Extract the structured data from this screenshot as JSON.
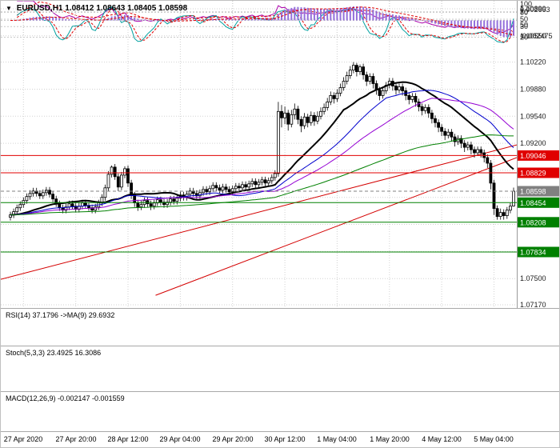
{
  "header": {
    "dropdown_icon": "▼",
    "title": "EURUSD,H1 1.08412 1.08643 1.08405 1.08598"
  },
  "colors": {
    "bull": "#FFFFFF",
    "bear": "#000000",
    "candle_outline": "#000000",
    "axis_border": "#9A9A9A"
  },
  "chart_data": {
    "type": "candlestick",
    "symbol": "EURUSD",
    "timeframe": "H1",
    "ohlc_display": {
      "open": "1.08412",
      "high": "1.08643",
      "low": "1.08405",
      "close": "1.08598"
    },
    "x_axis": {
      "labels": [
        "27 Apr 2020",
        "27 Apr 20:00",
        "28 Apr 12:00",
        "29 Apr 04:00",
        "29 Apr 20:00",
        "30 Apr 12:00",
        "1 May 04:00",
        "1 May 20:00",
        "4 May 12:00",
        "5 May 04:00"
      ],
      "label_candle_indices": [
        4,
        20,
        36,
        52,
        68,
        84,
        100,
        116,
        132,
        148
      ]
    },
    "y_axis": {
      "min": 1.0717,
      "max": 1.1089,
      "gridline_values": [
        1.1089,
        1.1055,
        1.1022,
        1.0988,
        1.0954,
        1.092,
        1.0886,
        1.0852,
        1.0818,
        1.0784,
        1.075,
        1.0717
      ],
      "tick_labels": [
        "1.10890",
        "1.10550",
        "1.10220",
        "1.09880",
        "1.09540",
        "1.09200",
        "",
        "",
        "",
        "",
        "1.07500",
        "1.07170"
      ]
    },
    "levels": [
      {
        "price": 1.09046,
        "label": "1.09046",
        "type": "resistance",
        "color": "#E00000",
        "dashed": false
      },
      {
        "price": 1.08829,
        "label": "1.08829",
        "type": "resistance",
        "color": "#E00000",
        "dashed": false
      },
      {
        "price": 1.08598,
        "label": "1.08598",
        "type": "current-price",
        "color": "#808080",
        "dashed": true
      },
      {
        "price": 1.08454,
        "label": "1.08454",
        "type": "support",
        "color": "#008000",
        "dashed": false
      },
      {
        "price": 1.08208,
        "label": "1.08208",
        "type": "support",
        "color": "#008000",
        "dashed": false
      },
      {
        "price": 1.07834,
        "label": "1.07834",
        "type": "support",
        "color": "#008000",
        "dashed": false
      }
    ],
    "trendlines": [
      {
        "x1f": 0.0,
        "p1": 1.0749,
        "x2f": 1.0,
        "p2": 1.0918,
        "color": "#D40000"
      },
      {
        "x1f": 0.3,
        "p1": 1.0729,
        "x2f": 1.0,
        "p2": 1.0902,
        "color": "#D40000"
      }
    ],
    "moving_averages": [
      {
        "name": "ma-fast-black",
        "period": 21,
        "color": "#000000",
        "width": 2
      },
      {
        "name": "ma-medium-blue",
        "period": 34,
        "color": "#0000CD",
        "width": 1
      },
      {
        "name": "ma-slow-violet",
        "period": 48,
        "color": "#9400D3",
        "width": 1
      },
      {
        "name": "ma-slowest-green",
        "period": 96,
        "color": "#008000",
        "width": 1
      }
    ],
    "indicators": {
      "rsi": {
        "label": "RSI(14) 37.1796 ->MA(9) 29.6932",
        "period": 14,
        "ma_period": 9,
        "levels": [
          70,
          50,
          30
        ],
        "color": "#AA00AA",
        "ma_color": "#E00000"
      },
      "stoch": {
        "label": "Stoch(5,3,3) 23.4925 16.3086",
        "k": 5,
        "slowing": 3,
        "d": 3,
        "levels": [
          100,
          80,
          50,
          20
        ],
        "dotted_levels": [
          80,
          20
        ],
        "color": "#00A0A0",
        "signal_color": "#E00000"
      },
      "macd": {
        "label": "MACD(12,26,9) -0.002147 -0.001559",
        "fast": 12,
        "slow": 26,
        "signal": 9,
        "axis_labels": [
          "0.002663",
          "-0.002475"
        ],
        "hist_color": "#9370DB",
        "signal_color": "#E00000"
      }
    },
    "candles": [
      [
        1.0827,
        1.0834,
        1.0823,
        1.083
      ],
      [
        1.083,
        1.0838,
        1.0826,
        1.0834
      ],
      [
        1.0834,
        1.0843,
        1.083,
        1.0839
      ],
      [
        1.0839,
        1.0847,
        1.0835,
        1.0843
      ],
      [
        1.0843,
        1.0852,
        1.0839,
        1.0848
      ],
      [
        1.0848,
        1.0857,
        1.0844,
        1.0853
      ],
      [
        1.0853,
        1.0861,
        1.0849,
        1.0857
      ],
      [
        1.0857,
        1.0864,
        1.0853,
        1.086
      ],
      [
        1.086,
        1.0864,
        1.0853,
        1.0857
      ],
      [
        1.0857,
        1.0861,
        1.085,
        1.0854
      ],
      [
        1.0854,
        1.0862,
        1.085,
        1.0858
      ],
      [
        1.0858,
        1.0865,
        1.0854,
        1.0861
      ],
      [
        1.0861,
        1.0865,
        1.0852,
        1.0856
      ],
      [
        1.0856,
        1.086,
        1.0846,
        1.085
      ],
      [
        1.085,
        1.0854,
        1.084,
        1.0844
      ],
      [
        1.0844,
        1.0848,
        1.0835,
        1.0839
      ],
      [
        1.0839,
        1.0843,
        1.0832,
        1.0836
      ],
      [
        1.0836,
        1.0844,
        1.0832,
        1.084
      ],
      [
        1.084,
        1.0848,
        1.0836,
        1.0844
      ],
      [
        1.0844,
        1.0848,
        1.0837,
        1.0841
      ],
      [
        1.0841,
        1.0845,
        1.0833,
        1.0837
      ],
      [
        1.0837,
        1.0845,
        1.0833,
        1.0841
      ],
      [
        1.0841,
        1.0849,
        1.0837,
        1.0845
      ],
      [
        1.0845,
        1.0849,
        1.0838,
        1.0842
      ],
      [
        1.0842,
        1.0846,
        1.0835,
        1.0839
      ],
      [
        1.0839,
        1.0843,
        1.0832,
        1.0836
      ],
      [
        1.0836,
        1.0844,
        1.0832,
        1.084
      ],
      [
        1.084,
        1.0849,
        1.0836,
        1.0845
      ],
      [
        1.0845,
        1.0856,
        1.0841,
        1.0852
      ],
      [
        1.0852,
        1.0868,
        1.0848,
        1.0864
      ],
      [
        1.0864,
        1.0885,
        1.086,
        1.0881
      ],
      [
        1.0881,
        1.0892,
        1.0877,
        1.089
      ],
      [
        1.089,
        1.0894,
        1.0874,
        1.0878
      ],
      [
        1.0878,
        1.0882,
        1.086,
        1.0865
      ],
      [
        1.0865,
        1.0884,
        1.0861,
        1.088
      ],
      [
        1.088,
        1.0891,
        1.0876,
        1.0888
      ],
      [
        1.0888,
        1.0892,
        1.0865,
        1.087
      ],
      [
        1.087,
        1.0874,
        1.085,
        1.0855
      ],
      [
        1.0855,
        1.0859,
        1.084,
        1.0845
      ],
      [
        1.0845,
        1.0849,
        1.0835,
        1.084
      ],
      [
        1.084,
        1.0848,
        1.0836,
        1.0843
      ],
      [
        1.0843,
        1.0852,
        1.0839,
        1.0848
      ],
      [
        1.0848,
        1.0852,
        1.084,
        1.0844
      ],
      [
        1.0844,
        1.0848,
        1.0836,
        1.0841
      ],
      [
        1.0841,
        1.0849,
        1.0837,
        1.0845
      ],
      [
        1.0845,
        1.0853,
        1.0841,
        1.0849
      ],
      [
        1.0849,
        1.0853,
        1.0842,
        1.0846
      ],
      [
        1.0846,
        1.085,
        1.0839,
        1.0843
      ],
      [
        1.0843,
        1.085,
        1.0839,
        1.0846
      ],
      [
        1.0846,
        1.0854,
        1.0842,
        1.085
      ],
      [
        1.085,
        1.0854,
        1.0843,
        1.0847
      ],
      [
        1.0847,
        1.0855,
        1.0843,
        1.0851
      ],
      [
        1.0851,
        1.0859,
        1.0847,
        1.0855
      ],
      [
        1.0855,
        1.0859,
        1.0848,
        1.0852
      ],
      [
        1.0852,
        1.086,
        1.0848,
        1.0856
      ],
      [
        1.0856,
        1.0864,
        1.0852,
        1.086
      ],
      [
        1.086,
        1.0864,
        1.0853,
        1.0857
      ],
      [
        1.0857,
        1.0861,
        1.085,
        1.0854
      ],
      [
        1.0854,
        1.0862,
        1.085,
        1.0858
      ],
      [
        1.0858,
        1.0866,
        1.0854,
        1.0862
      ],
      [
        1.0862,
        1.0866,
        1.0855,
        1.0859
      ],
      [
        1.0859,
        1.0867,
        1.0855,
        1.0863
      ],
      [
        1.0863,
        1.0871,
        1.0859,
        1.0867
      ],
      [
        1.0867,
        1.0871,
        1.086,
        1.0864
      ],
      [
        1.0864,
        1.0868,
        1.0857,
        1.0861
      ],
      [
        1.0861,
        1.0869,
        1.0857,
        1.0865
      ],
      [
        1.0865,
        1.0869,
        1.0858,
        1.0862
      ],
      [
        1.0862,
        1.0866,
        1.0855,
        1.0859
      ],
      [
        1.0859,
        1.0867,
        1.0855,
        1.0863
      ],
      [
        1.0863,
        1.087,
        1.0859,
        1.0866
      ],
      [
        1.0866,
        1.087,
        1.086,
        1.0864
      ],
      [
        1.0864,
        1.0872,
        1.086,
        1.0868
      ],
      [
        1.0868,
        1.0872,
        1.0861,
        1.0865
      ],
      [
        1.0865,
        1.0873,
        1.0861,
        1.0869
      ],
      [
        1.0869,
        1.0876,
        1.0865,
        1.0872
      ],
      [
        1.0872,
        1.0876,
        1.0864,
        1.0868
      ],
      [
        1.0868,
        1.0875,
        1.0864,
        1.0871
      ],
      [
        1.0871,
        1.0878,
        1.0867,
        1.0874
      ],
      [
        1.0874,
        1.0878,
        1.0866,
        1.087
      ],
      [
        1.087,
        1.0877,
        1.0866,
        1.0873
      ],
      [
        1.0873,
        1.0881,
        1.0869,
        1.0877
      ],
      [
        1.0877,
        1.0886,
        1.0873,
        1.0882
      ],
      [
        1.0882,
        1.0972,
        1.0878,
        1.096
      ],
      [
        1.096,
        1.0968,
        1.094,
        1.0952
      ],
      [
        1.0952,
        1.0966,
        1.0944,
        1.0958
      ],
      [
        1.0958,
        1.0962,
        1.0936,
        1.0944
      ],
      [
        1.0944,
        1.0962,
        1.094,
        1.0956
      ],
      [
        1.0956,
        1.097,
        1.095,
        1.0963
      ],
      [
        1.0963,
        1.0967,
        1.0944,
        1.095
      ],
      [
        1.095,
        1.0954,
        1.0934,
        1.0942
      ],
      [
        1.0942,
        1.0958,
        1.0938,
        1.0953
      ],
      [
        1.0953,
        1.0957,
        1.094,
        1.0946
      ],
      [
        1.0946,
        1.096,
        1.0942,
        1.0955
      ],
      [
        1.0955,
        1.0959,
        1.0942,
        1.0948
      ],
      [
        1.0948,
        1.096,
        1.0944,
        1.0954
      ],
      [
        1.0954,
        1.0965,
        1.095,
        1.096
      ],
      [
        1.096,
        1.097,
        1.0956,
        1.0965
      ],
      [
        1.0965,
        1.0977,
        1.0961,
        1.0972
      ],
      [
        1.0972,
        1.0985,
        1.0968,
        1.098
      ],
      [
        1.098,
        1.0984,
        1.097,
        1.0976
      ],
      [
        1.0976,
        1.0988,
        1.0972,
        1.0983
      ],
      [
        1.0983,
        1.0995,
        1.0979,
        1.099
      ],
      [
        1.099,
        1.1003,
        1.0986,
        1.0998
      ],
      [
        1.0998,
        1.101,
        1.0994,
        1.1005
      ],
      [
        1.1005,
        1.1017,
        1.1001,
        1.1012
      ],
      [
        1.1012,
        1.1022,
        1.1008,
        1.1018
      ],
      [
        1.1018,
        1.1021,
        1.1004,
        1.101
      ],
      [
        1.101,
        1.1019,
        1.1006,
        1.1016
      ],
      [
        1.1016,
        1.102,
        1.1,
        1.1006
      ],
      [
        1.1006,
        1.101,
        1.0992,
        1.0998
      ],
      [
        1.0998,
        1.1008,
        1.0994,
        1.1004
      ],
      [
        1.1004,
        1.1008,
        1.0989,
        1.0995
      ],
      [
        1.0995,
        1.0999,
        1.0981,
        1.0987
      ],
      [
        1.0987,
        1.0991,
        1.0974,
        1.098
      ],
      [
        1.098,
        1.099,
        1.0976,
        1.0986
      ],
      [
        1.0986,
        1.0997,
        1.0982,
        1.0993
      ],
      [
        1.0993,
        1.1002,
        1.0989,
        1.0998
      ],
      [
        1.0998,
        1.1002,
        1.0986,
        1.0992
      ],
      [
        1.0992,
        1.0996,
        1.0981,
        1.0987
      ],
      [
        1.0987,
        1.0995,
        1.0983,
        1.0991
      ],
      [
        1.0991,
        1.0995,
        1.098,
        1.0986
      ],
      [
        1.0986,
        1.099,
        1.0974,
        1.098
      ],
      [
        1.098,
        1.0984,
        1.0969,
        1.0975
      ],
      [
        1.0975,
        1.0983,
        1.0971,
        1.0979
      ],
      [
        1.0979,
        1.0983,
        1.0966,
        1.0972
      ],
      [
        1.0972,
        1.0976,
        1.096,
        1.0966
      ],
      [
        1.0966,
        1.097,
        1.0955,
        1.0961
      ],
      [
        1.0961,
        1.0969,
        1.0957,
        1.0965
      ],
      [
        1.0965,
        1.0969,
        1.0952,
        1.0958
      ],
      [
        1.0958,
        1.0962,
        1.0945,
        1.0951
      ],
      [
        1.0951,
        1.0955,
        1.094,
        1.0946
      ],
      [
        1.0946,
        1.095,
        1.0934,
        1.094
      ],
      [
        1.094,
        1.0944,
        1.0929,
        1.0935
      ],
      [
        1.0935,
        1.0939,
        1.0924,
        1.093
      ],
      [
        1.093,
        1.0938,
        1.0926,
        1.0934
      ],
      [
        1.0934,
        1.0938,
        1.0922,
        1.0928
      ],
      [
        1.0928,
        1.0932,
        1.0916,
        1.0922
      ],
      [
        1.0922,
        1.093,
        1.0918,
        1.0926
      ],
      [
        1.0926,
        1.093,
        1.0914,
        1.092
      ],
      [
        1.092,
        1.0924,
        1.0909,
        1.0915
      ],
      [
        1.0915,
        1.0922,
        1.0911,
        1.0918
      ],
      [
        1.0918,
        1.0922,
        1.0906,
        1.0912
      ],
      [
        1.0912,
        1.0916,
        1.0902,
        1.0908
      ],
      [
        1.0908,
        1.0916,
        1.0904,
        1.0912
      ],
      [
        1.0912,
        1.0916,
        1.0902,
        1.0908
      ],
      [
        1.0908,
        1.0912,
        1.0896,
        1.0902
      ],
      [
        1.0902,
        1.0906,
        1.0889,
        1.0895
      ],
      [
        1.0895,
        1.0899,
        1.0862,
        1.087
      ],
      [
        1.087,
        1.0874,
        1.083,
        1.0838
      ],
      [
        1.0838,
        1.0842,
        1.0824,
        1.0828
      ],
      [
        1.0828,
        1.0838,
        1.0824,
        1.0833
      ],
      [
        1.0833,
        1.0837,
        1.0824,
        1.0829
      ],
      [
        1.0829,
        1.084,
        1.0825,
        1.0836
      ],
      [
        1.0836,
        1.0845,
        1.0832,
        1.0841
      ],
      [
        1.08412,
        1.08643,
        1.08405,
        1.08598
      ]
    ]
  }
}
